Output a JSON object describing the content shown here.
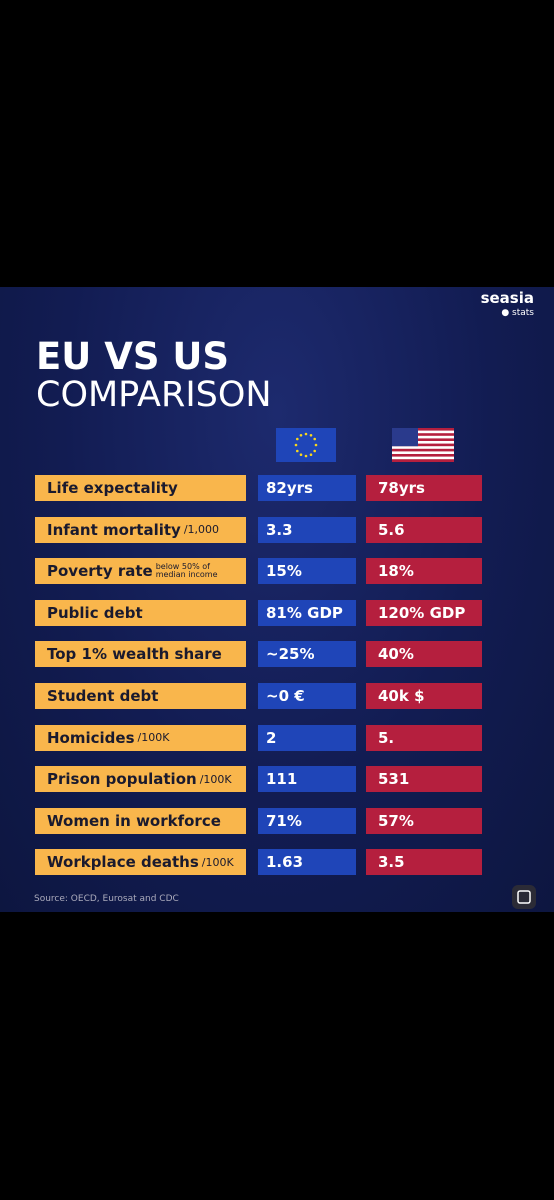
{
  "header": {
    "brand": "seasia",
    "brand_sub": "stats",
    "title_line1": "EU VS US",
    "title_line2": "COMPARISON"
  },
  "table": {
    "rows": [
      {
        "label": "Life expectality",
        "unit": null,
        "eu": "82yrs",
        "us": "78yrs"
      },
      {
        "label": "Infant mortality",
        "unit": "/1,000",
        "eu": "3.3",
        "us": "5.6"
      },
      {
        "label": "Poverty rate",
        "unit": "below 50% of median income",
        "eu": "15%",
        "us": "18%"
      },
      {
        "label": "Public debt",
        "unit": null,
        "eu": "81% GDP",
        "us": "120% GDP"
      },
      {
        "label": "Top 1% wealth share",
        "unit": null,
        "eu": "~25%",
        "us": "40%"
      },
      {
        "label": "Student debt",
        "unit": null,
        "eu": "~0 €",
        "us": "40k $"
      },
      {
        "label": "Homicides",
        "unit": "/100K",
        "eu": "2",
        "us": "5."
      },
      {
        "label": "Prison population",
        "unit": "/100K",
        "eu": "111",
        "us": "531"
      },
      {
        "label": "Women in workforce",
        "unit": null,
        "eu": "71%",
        "us": "57%"
      },
      {
        "label": "Workplace deaths",
        "unit": "/100K",
        "eu": "1.63",
        "us": "3.5"
      }
    ]
  },
  "footer": {
    "source": "Source: OECD, Eurosat and CDC"
  }
}
